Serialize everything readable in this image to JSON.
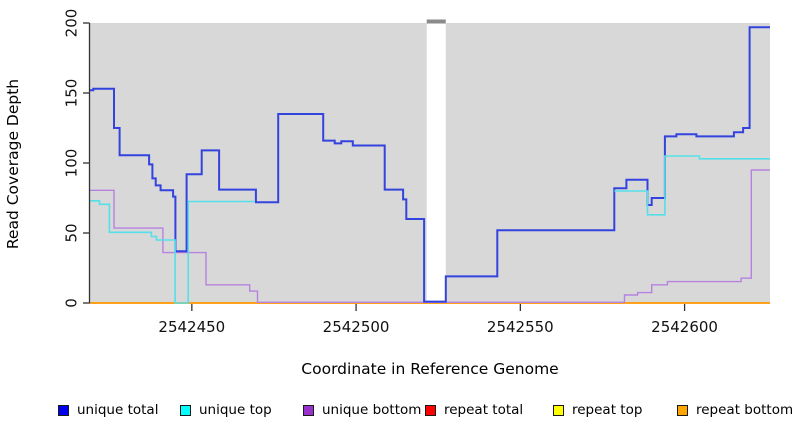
{
  "figure": {
    "xlabel": "Coordinate in Reference Genome",
    "ylabel": "Read Coverage Depth"
  },
  "chart_data": {
    "type": "line",
    "step": true,
    "title": "",
    "xlabel": "Coordinate in Reference Genome",
    "ylabel": "Read Coverage Depth",
    "x_range": [
      2542419,
      2542626
    ],
    "y_range": [
      0,
      200
    ],
    "x_ticks": [
      2542450,
      2542500,
      2542550,
      2542600
    ],
    "y_ticks": [
      0,
      50,
      100,
      150,
      200
    ],
    "grid": false,
    "plot_background": "#d8d8d8",
    "masked_region": {
      "start": 2542521.5,
      "end": 2542527.3,
      "fill": "#ffffff",
      "cap_color": "#8a8a8a"
    },
    "legend_position": "bottom",
    "legend": [
      {
        "label": "unique total",
        "color": "#0000ee"
      },
      {
        "label": "unique top",
        "color": "#00ffff"
      },
      {
        "label": "unique bottom",
        "color": "#9932cc"
      },
      {
        "label": "repeat total",
        "color": "#ff0000"
      },
      {
        "label": "repeat top",
        "color": "#ffff00"
      },
      {
        "label": "repeat bottom",
        "color": "#ffa500"
      }
    ],
    "series": [
      {
        "name": "repeat total",
        "color": "#dc3a5a",
        "width": 1.2,
        "segments": [
          [
            [
              2542419,
              0
            ],
            [
              2542626,
              0
            ]
          ]
        ]
      },
      {
        "name": "repeat top",
        "color": "#ffff00",
        "width": 1.0,
        "segments": [
          [
            [
              2542419,
              0
            ],
            [
              2542626,
              0
            ]
          ]
        ]
      },
      {
        "name": "repeat bottom",
        "color": "#ff9d00",
        "width": 1.8,
        "segments": [
          [
            [
              2542419,
              0
            ],
            [
              2542626,
              0
            ]
          ]
        ]
      },
      {
        "name": "unique bottom",
        "color": "#b682e0",
        "width": 1.4,
        "segments": [
          [
            [
              2542419,
              80.5
            ],
            [
              2542426.3,
              53.5
            ],
            [
              2542441.2,
              36
            ],
            [
              2542454.3,
              13
            ],
            [
              2542467.6,
              8.5
            ],
            [
              2542470,
              0.5
            ],
            [
              2542581.7,
              5.7
            ],
            [
              2542585.7,
              7.4
            ],
            [
              2542590,
              13
            ],
            [
              2542594.8,
              15.3
            ],
            [
              2542617.2,
              17.7
            ],
            [
              2542620.3,
              95
            ],
            [
              2542626,
              95
            ]
          ]
        ]
      },
      {
        "name": "unique total",
        "color": "#3343de",
        "width": 2.0,
        "segments": [
          [
            [
              2542419,
              152
            ],
            [
              2542420,
              153
            ],
            [
              2542426.3,
              125
            ],
            [
              2542428,
              105.5
            ],
            [
              2542437,
              99
            ],
            [
              2542438,
              89
            ],
            [
              2542439,
              84
            ],
            [
              2542440.5,
              80.5
            ],
            [
              2542444.3,
              76
            ],
            [
              2542445,
              37
            ],
            [
              2542448.4,
              92
            ],
            [
              2542453,
              109
            ],
            [
              2542458.3,
              81
            ],
            [
              2542469.5,
              72
            ],
            [
              2542476.3,
              135
            ],
            [
              2542490,
              116
            ],
            [
              2542493.5,
              114
            ],
            [
              2542495.5,
              115.5
            ],
            [
              2542499,
              112.5
            ],
            [
              2542508.7,
              81
            ],
            [
              2542514.3,
              74
            ],
            [
              2542515.3,
              60
            ],
            [
              2542520.7,
              1
            ],
            [
              2542527.3,
              19
            ],
            [
              2542543,
              52
            ],
            [
              2542578.6,
              82
            ],
            [
              2542582.3,
              88
            ],
            [
              2542588.7,
              70
            ],
            [
              2542590,
              75
            ],
            [
              2542594,
              119
            ],
            [
              2542597.5,
              120.5
            ],
            [
              2542603.6,
              119
            ],
            [
              2542615,
              122
            ],
            [
              2542617.8,
              125
            ],
            [
              2542619.8,
              197
            ],
            [
              2542626,
              197
            ]
          ]
        ]
      },
      {
        "name": "unique top",
        "color": "#55dfe9",
        "width": 1.6,
        "segments": [
          [
            [
              2542419,
              73
            ],
            [
              2542421.9,
              70.5
            ],
            [
              2542424.9,
              50.5
            ],
            [
              2542437.7,
              47.5
            ],
            [
              2542439.2,
              45
            ],
            [
              2542444.9,
              0
            ],
            [
              2542448.9,
              72.5
            ],
            [
              2542469,
              72.5
            ]
          ],
          [
            [
              2542578.6,
              80
            ],
            [
              2542588.7,
              63
            ],
            [
              2542594,
              105
            ],
            [
              2542604.5,
              103
            ],
            [
              2542626,
              103
            ]
          ]
        ]
      }
    ]
  }
}
